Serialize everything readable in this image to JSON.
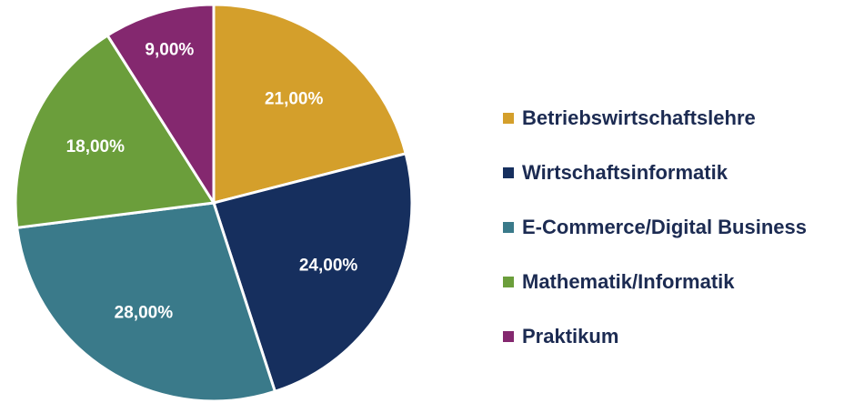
{
  "chart_data": {
    "type": "pie",
    "categories": [
      "Betriebswirtschaftslehre",
      "Wirtschaftsinformatik",
      "E-Commerce/Digital Business",
      "Mathematik/Informatik",
      "Praktikum"
    ],
    "values": [
      21,
      24,
      28,
      18,
      9
    ],
    "value_labels": [
      "21,00%",
      "24,00%",
      "28,00%",
      "18,00%",
      "9,00%"
    ],
    "colors": [
      "#d49f2b",
      "#162f5e",
      "#3a7a8a",
      "#6b9e3b",
      "#84286f"
    ],
    "legend": "right"
  }
}
